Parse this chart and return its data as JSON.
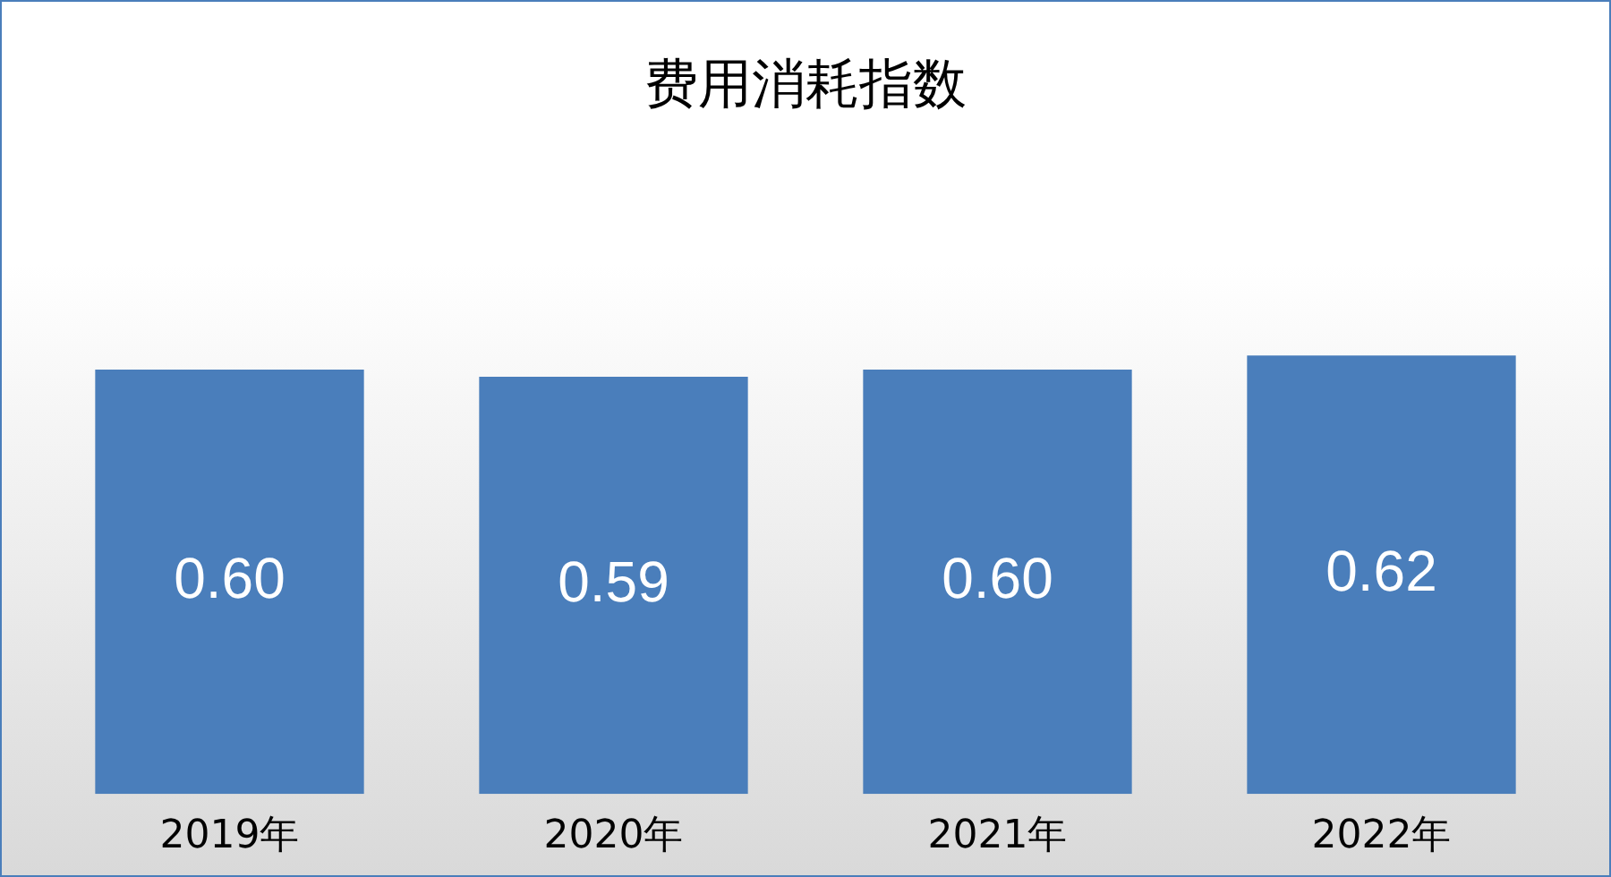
{
  "chart_data": {
    "type": "bar",
    "title": "费用消耗指数",
    "categories": [
      "2019年",
      "2020年",
      "2021年",
      "2022年"
    ],
    "values": [
      0.6,
      0.59,
      0.6,
      0.62
    ],
    "color": "#4a7ebb",
    "data_labels": true,
    "value_labels": [
      "0.60",
      "0.59",
      "0.60",
      "0.62"
    ]
  }
}
